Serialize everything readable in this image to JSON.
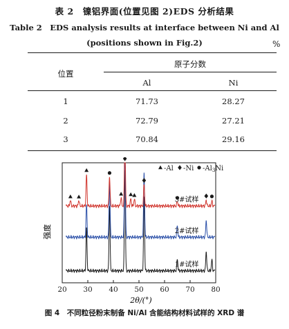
{
  "table": {
    "title_cn": "表 2　镍铝界面(位置见图 2)EDS 分析结果",
    "title_en_line1": "Table 2　EDS analysis results at interface between Ni and Al",
    "title_en_line2": "(positions shown in Fig.2)",
    "unit": "%",
    "col_position": "位置",
    "col_group": "原子分数",
    "col_al": "Al",
    "col_ni": "Ni",
    "rows": [
      {
        "pos": "1",
        "al": "71.73",
        "ni": "28.27"
      },
      {
        "pos": "2",
        "al": "72.79",
        "ni": "27.21"
      },
      {
        "pos": "3",
        "al": "70.84",
        "ni": "29.16"
      }
    ]
  },
  "figure": {
    "caption": "图 4　不同粒径粉末制备 Ni/Al 含能结构材料试样的 XRD 谱"
  },
  "chart_data": {
    "type": "line",
    "xlabel": "2θ/(°)",
    "ylabel": "强度",
    "xlim": [
      20,
      80
    ],
    "x_ticks": [
      20,
      30,
      40,
      50,
      60,
      70,
      80
    ],
    "legend": {
      "items": [
        {
          "marker": "triangle",
          "label": "Al"
        },
        {
          "marker": "diamond",
          "label": "Ni"
        },
        {
          "marker": "circle",
          "label": "Al3Ni"
        }
      ],
      "position": "top-right"
    },
    "colors": {
      "sample1": "#1a1a1a",
      "sample2": "#2a4fa8",
      "sample3": "#d0342c"
    },
    "series": [
      {
        "name": "1#试样",
        "baseline": 0.1,
        "peaks": [
          [
            29.5,
            0.36
          ],
          [
            38.5,
            0.55
          ],
          [
            44.5,
            0.85
          ],
          [
            52.0,
            0.62
          ],
          [
            65.0,
            0.1
          ],
          [
            76.3,
            0.16
          ],
          [
            78.5,
            0.09
          ]
        ]
      },
      {
        "name": "2#试样",
        "baseline": 0.38,
        "peaks": [
          [
            29.5,
            0.27
          ],
          [
            38.5,
            0.47
          ],
          [
            44.5,
            0.76
          ],
          [
            52.0,
            0.54
          ],
          [
            65.0,
            0.1
          ],
          [
            76.3,
            0.14
          ]
        ]
      },
      {
        "name": "3#试样",
        "baseline": 0.64,
        "peaks": [
          [
            23.2,
            0.05
          ],
          [
            26.5,
            0.05
          ],
          [
            29.5,
            0.26
          ],
          [
            38.5,
            0.25
          ],
          [
            43.0,
            0.07
          ],
          [
            44.5,
            0.6
          ],
          [
            46.8,
            0.06
          ],
          [
            48.2,
            0.06
          ],
          [
            52.0,
            0.18
          ],
          [
            65.0,
            0.04
          ],
          [
            76.3,
            0.05
          ],
          [
            78.5,
            0.04
          ]
        ]
      }
    ],
    "peak_markers": [
      {
        "x": 23.2,
        "marker": "triangle"
      },
      {
        "x": 26.5,
        "marker": "triangle"
      },
      {
        "x": 29.5,
        "marker": "triangle"
      },
      {
        "x": 38.5,
        "marker": "circle"
      },
      {
        "x": 43.0,
        "marker": "triangle"
      },
      {
        "x": 44.5,
        "marker": "diamond"
      },
      {
        "x": 46.8,
        "marker": "triangle"
      },
      {
        "x": 48.2,
        "marker": "triangle"
      },
      {
        "x": 52.0,
        "marker": "diamond"
      },
      {
        "x": 65.0,
        "marker": "circle"
      },
      {
        "x": 76.3,
        "marker": "diamond"
      },
      {
        "x": 78.5,
        "marker": "circle"
      }
    ]
  }
}
